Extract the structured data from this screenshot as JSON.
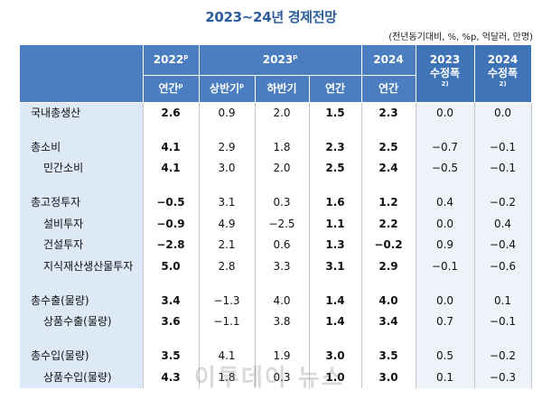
{
  "title": "2023~24년 경제전망",
  "unit_note": "(전년동기대비, %, %p, 억달러, 만명)",
  "header": {
    "col_2022": "2022",
    "col_2022_sup": "p",
    "col_2023": "2023",
    "col_2023_sup": "p",
    "col_2024": "2024",
    "col_adj2023_year": "2023",
    "col_adj2023_label": "수정폭",
    "col_adj2023_sup": "2)",
    "col_adj2024_year": "2024",
    "col_adj2024_label": "수정폭",
    "col_adj2024_sup": "2)",
    "sub_2022": "연간",
    "sub_2022_sup": "p",
    "sub_h1": "상반기",
    "sub_h1_sup": "p",
    "sub_h2": "하반기",
    "sub_2023_annual": "연간",
    "sub_2024_annual": "연간"
  },
  "rows": [
    {
      "label": "국내총생산",
      "v2022": "2.6",
      "h1": "0.9",
      "h2": "2.0",
      "y2023": "1.5",
      "y2024": "2.3",
      "adj2023": "0.0",
      "adj2024": "0.0"
    },
    {
      "label": "총소비",
      "v2022": "4.1",
      "h1": "2.9",
      "h2": "1.8",
      "y2023": "2.3",
      "y2024": "2.5",
      "adj2023": "−0.7",
      "adj2024": "−0.1"
    },
    {
      "label": "민간소비",
      "v2022": "4.1",
      "h1": "3.0",
      "h2": "2.0",
      "y2023": "2.5",
      "y2024": "2.4",
      "adj2023": "−0.5",
      "adj2024": "−0.1"
    },
    {
      "label": "총고정투자",
      "v2022": "−0.5",
      "h1": "3.1",
      "h2": "0.3",
      "y2023": "1.6",
      "y2024": "1.2",
      "adj2023": "0.4",
      "adj2024": "−0.2"
    },
    {
      "label": "설비투자",
      "v2022": "−0.9",
      "h1": "4.9",
      "h2": "−2.5",
      "y2023": "1.1",
      "y2024": "2.2",
      "adj2023": "0.0",
      "adj2024": "0.4"
    },
    {
      "label": "건설투자",
      "v2022": "−2.8",
      "h1": "2.1",
      "h2": "0.6",
      "y2023": "1.3",
      "y2024": "−0.2",
      "adj2023": "0.9",
      "adj2024": "−0.4"
    },
    {
      "label": "지식재산생산물투자",
      "v2022": "5.0",
      "h1": "2.8",
      "h2": "3.3",
      "y2023": "3.1",
      "y2024": "2.9",
      "adj2023": "−0.1",
      "adj2024": "−0.6"
    },
    {
      "label": "총수출(물량)",
      "v2022": "3.4",
      "h1": "−1.3",
      "h2": "4.0",
      "y2023": "1.4",
      "y2024": "4.0",
      "adj2023": "0.0",
      "adj2024": "0.1"
    },
    {
      "label": "상품수출(물량)",
      "v2022": "3.6",
      "h1": "−1.1",
      "h2": "3.8",
      "y2023": "1.4",
      "y2024": "3.4",
      "adj2023": "0.7",
      "adj2024": "−0.1"
    },
    {
      "label": "총수입(물량)",
      "v2022": "3.5",
      "h1": "4.1",
      "h2": "1.9",
      "y2023": "3.0",
      "y2024": "3.5",
      "adj2023": "0.5",
      "adj2024": "−0.2"
    },
    {
      "label": "상품수입(물량)",
      "v2022": "4.3",
      "h1": "1.8",
      "h2": "0.3",
      "y2023": "1.0",
      "y2024": "3.0",
      "adj2023": "0.1",
      "adj2024": "−0.3"
    }
  ],
  "watermark": "이투데이 뉴스"
}
